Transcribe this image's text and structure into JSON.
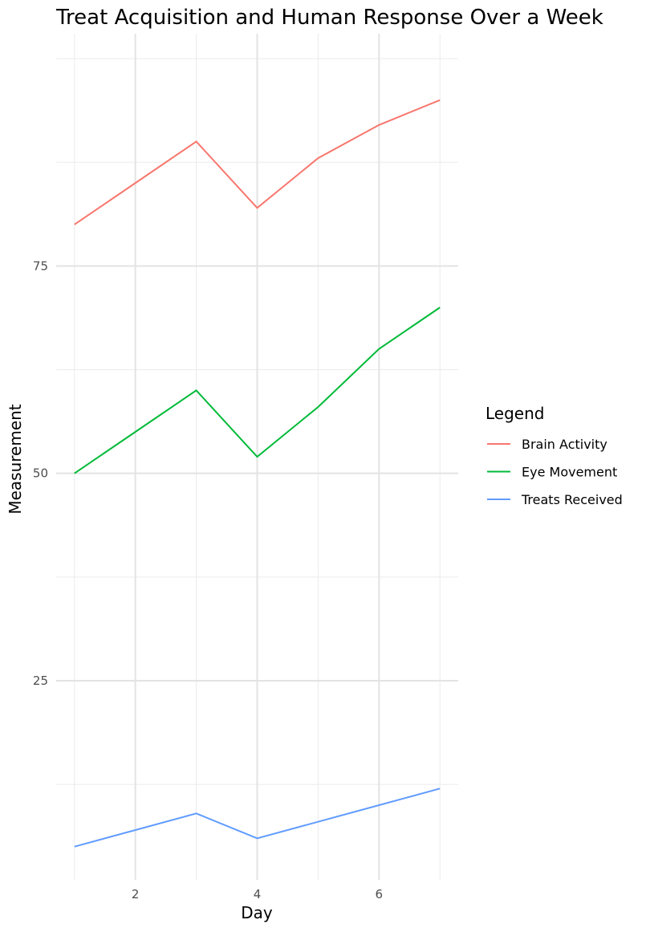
{
  "chart_data": {
    "type": "line",
    "title": "Treat Acquisition and Human Response Over a Week",
    "xlabel": "Day",
    "ylabel": "Measurement",
    "x": [
      1,
      2,
      3,
      4,
      5,
      6,
      7
    ],
    "x_ticks": [
      2,
      4,
      6
    ],
    "y_ticks": [
      25,
      50,
      75
    ],
    "xlim": [
      0.7,
      7.3
    ],
    "ylim": [
      1,
      103
    ],
    "grid": true,
    "legend_position": "right",
    "legend_title": "Legend",
    "series": [
      {
        "name": "Brain Activity",
        "color": "#F8766D",
        "values": [
          80,
          85,
          90,
          82,
          88,
          92,
          95
        ]
      },
      {
        "name": "Eye Movement",
        "color": "#00BA38",
        "values": [
          50,
          55,
          60,
          52,
          58,
          65,
          70
        ]
      },
      {
        "name": "Treats Received",
        "color": "#619CFF",
        "values": [
          5,
          7,
          9,
          6,
          8,
          10,
          12
        ]
      }
    ]
  }
}
